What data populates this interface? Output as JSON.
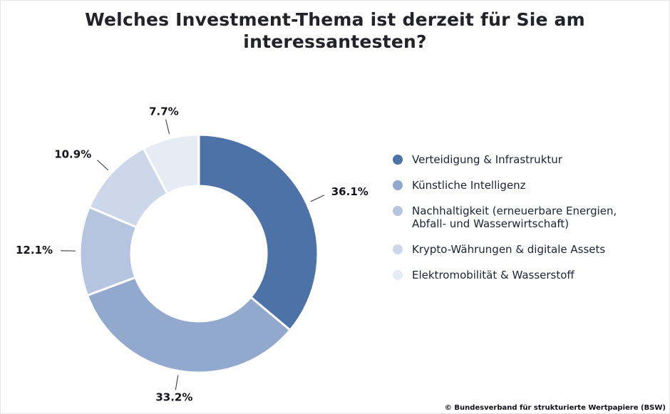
{
  "title": "Welches Investment-Thema ist derzeit für Sie am interessantesten?",
  "footer": "© Bundesverband für strukturierte Wertpapiere (BSW)",
  "chart_data": {
    "type": "pie",
    "donut": true,
    "inner_radius_ratio": 0.57,
    "start_angle_deg": 0,
    "direction": "clockwise",
    "title": "Welches Investment-Thema ist derzeit für Sie am interessantesten?",
    "legend_position": "right",
    "slices": [
      {
        "label": "Verteidigung & Infrastruktur",
        "value": 36.1,
        "pct_label": "36.1%",
        "color": "#4d72a7"
      },
      {
        "label": "Künstliche Intelligenz",
        "value": 33.2,
        "pct_label": "33.2%",
        "color": "#92a8cd"
      },
      {
        "label": "Nachhaltigkeit (erneuerbare Energien, Abfall- und Wasserwirtschaft)",
        "value": 12.1,
        "pct_label": "12.1%",
        "color": "#b5c5e0"
      },
      {
        "label": "Krypto-Währungen & digitale Assets",
        "value": 10.9,
        "pct_label": "10.9%",
        "color": "#ccd8ea"
      },
      {
        "label": "Elektromobilität & Wasserstoff",
        "value": 7.7,
        "pct_label": "7.7%",
        "color": "#e6ebf4"
      }
    ]
  }
}
